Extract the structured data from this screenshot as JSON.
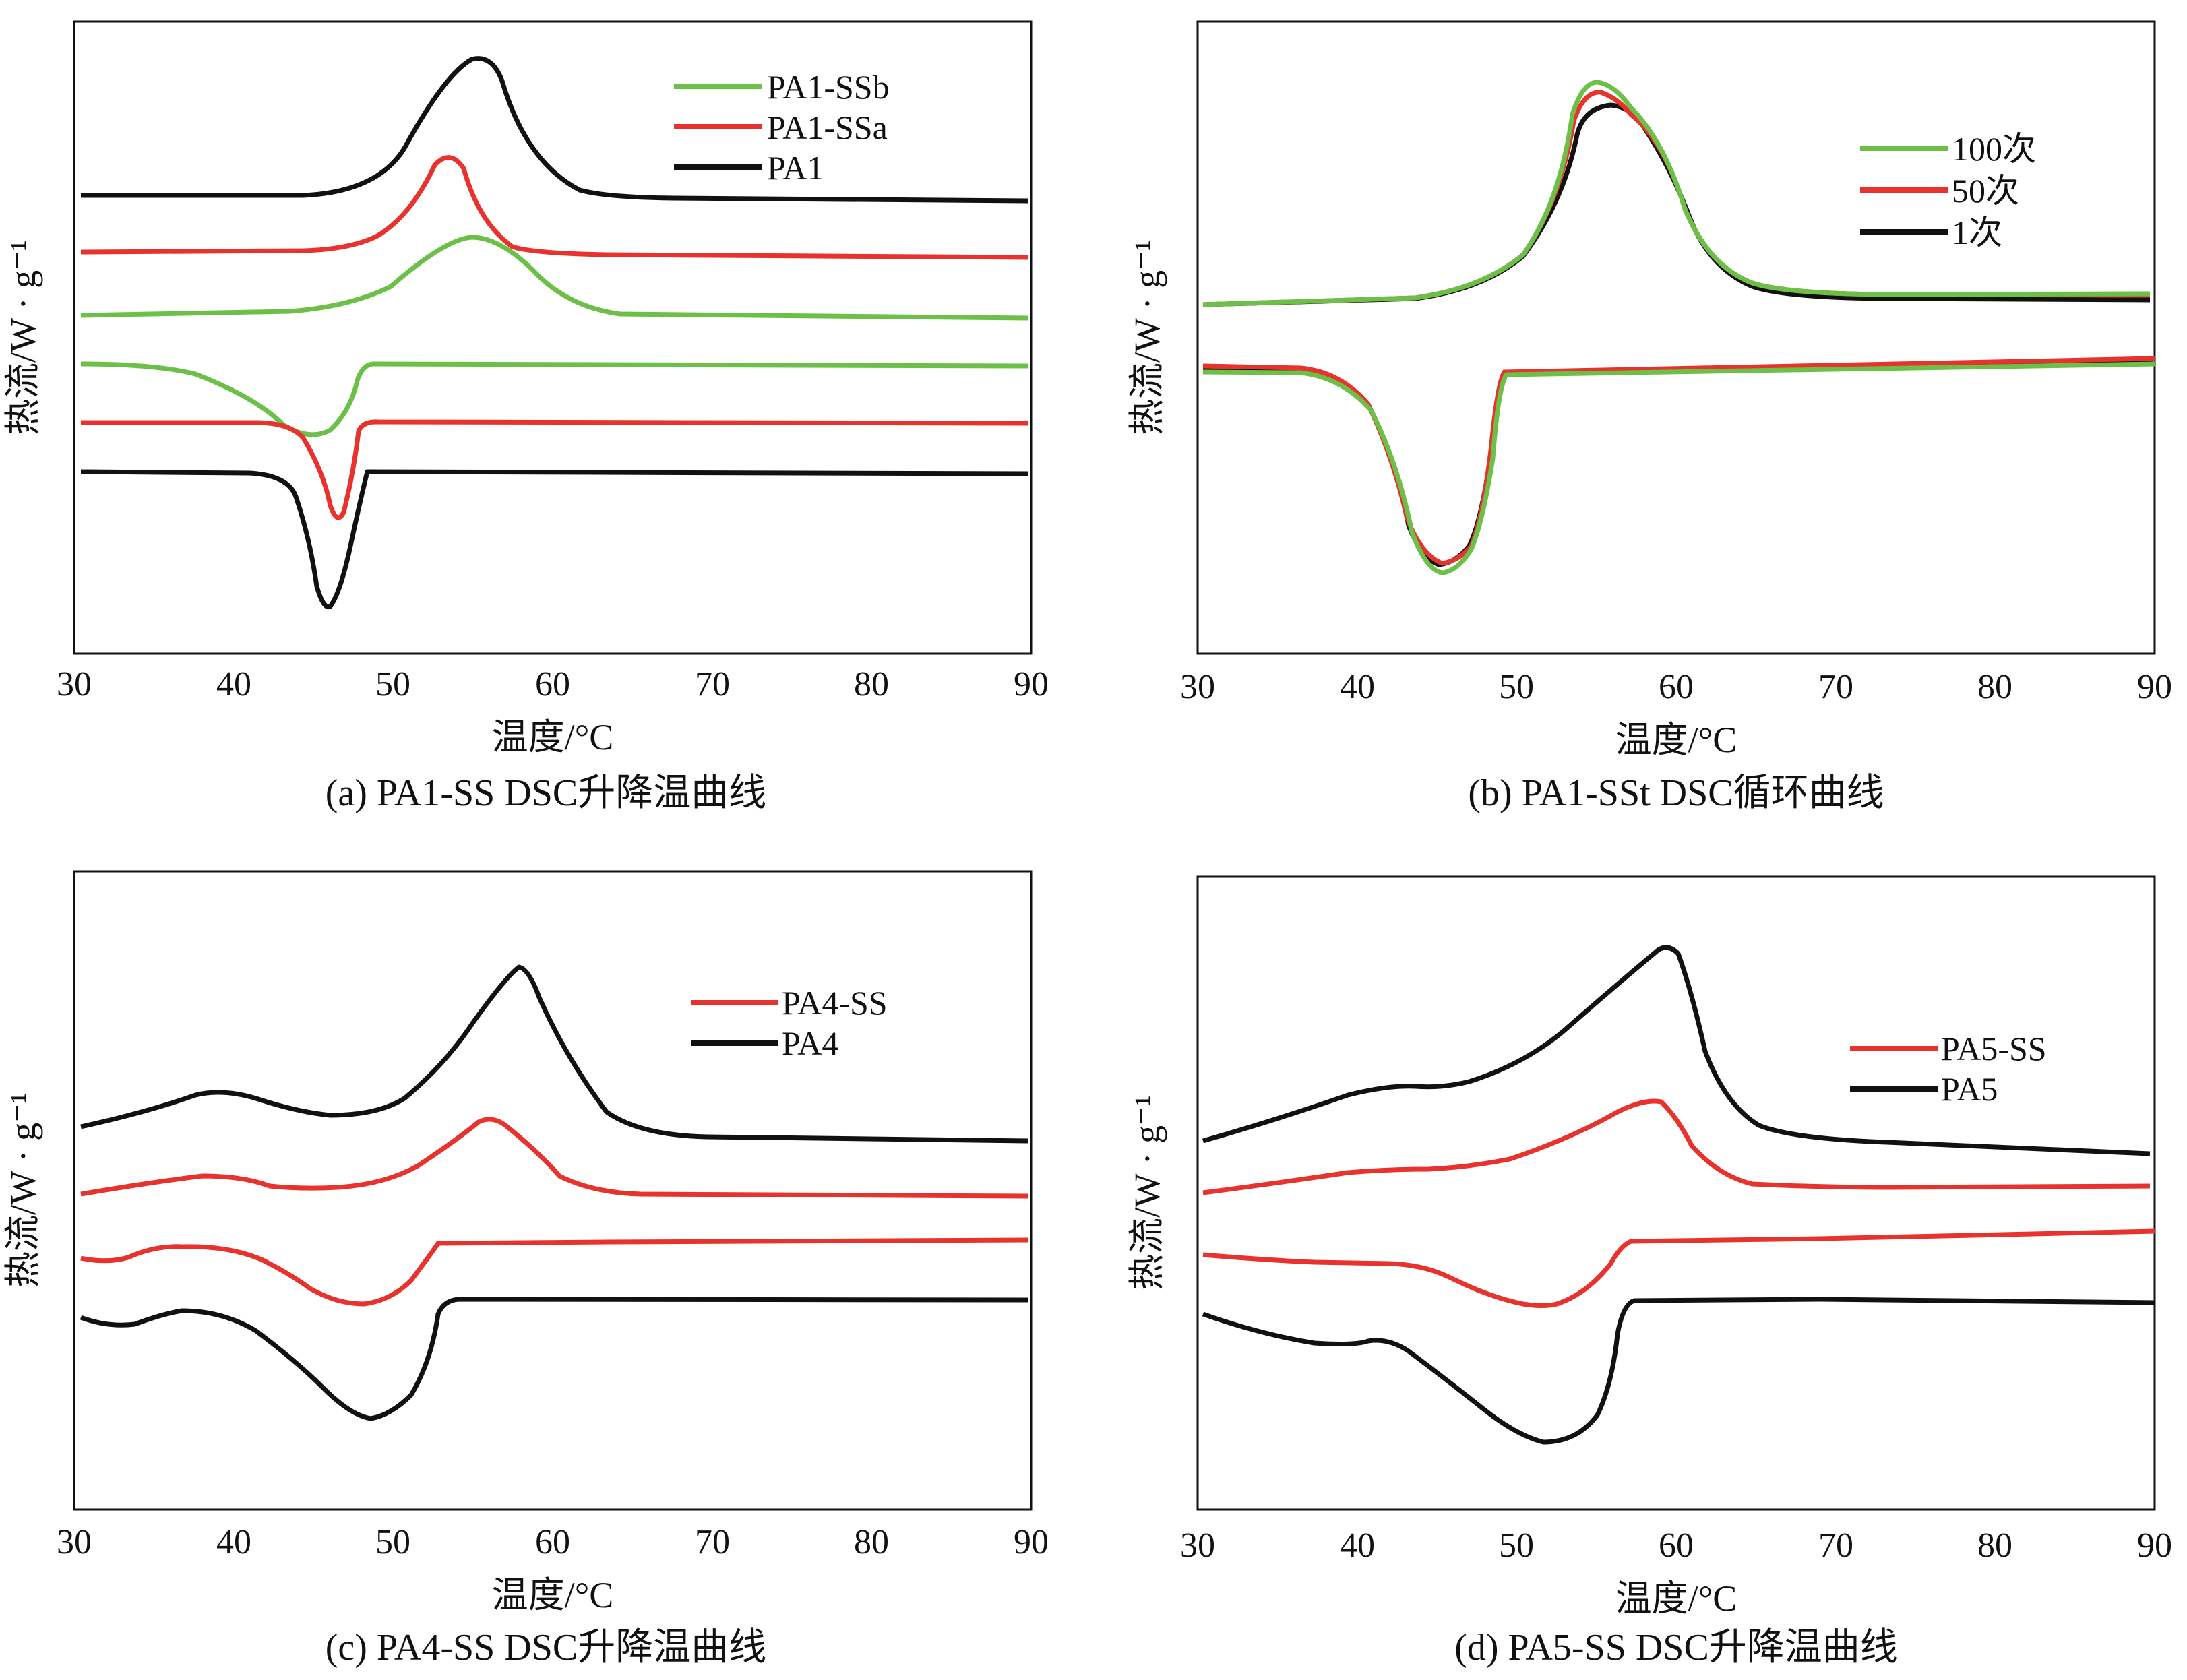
{
  "chart_data": [
    {
      "type": "line",
      "panel": "a",
      "caption": "(a) PA1-SS DSC升降温曲线",
      "xlabel": "温度/°C",
      "ylabel": "热流/W · g⁻¹",
      "xlim": [
        30,
        90
      ],
      "x_ticks": [
        "30",
        "40",
        "50",
        "60",
        "70",
        "80",
        "90"
      ],
      "y_ticks": [],
      "legend_position": "top-right",
      "legend": [
        "PA1-SSb",
        "PA1-SSa",
        "PA1"
      ],
      "series": [
        {
          "name": "PA1",
          "color": "#111111",
          "segment": "heating",
          "baseline_rank": 6,
          "events": [
            {
              "kind": "peak",
              "x": 55.5,
              "magnitude": 1.0,
              "width": 3.2
            }
          ]
        },
        {
          "name": "PA1-SSa",
          "color": "#e8322e",
          "segment": "heating",
          "baseline_rank": 5,
          "events": [
            {
              "kind": "peak",
              "x": 53.7,
              "magnitude": 0.75,
              "width": 2.6
            }
          ]
        },
        {
          "name": "PA1-SSb",
          "color": "#6cbf47",
          "segment": "heating",
          "baseline_rank": 4,
          "events": [
            {
              "kind": "peak",
              "x": 54.6,
              "magnitude": 0.55,
              "width": 4.5
            }
          ]
        },
        {
          "name": "PA1-SSb",
          "color": "#6cbf47",
          "segment": "cooling",
          "baseline_rank": 3,
          "events": [
            {
              "kind": "trough",
              "x": 44.2,
              "magnitude": 0.55,
              "onset": 48.0,
              "width": 4.0
            }
          ]
        },
        {
          "name": "PA1-SSa",
          "color": "#e8322e",
          "segment": "cooling",
          "baseline_rank": 2,
          "events": [
            {
              "kind": "trough",
              "x": 46.3,
              "magnitude": 0.75,
              "onset": 47.8,
              "width": 2.5
            }
          ]
        },
        {
          "name": "PA1",
          "color": "#111111",
          "segment": "cooling",
          "baseline_rank": 1,
          "events": [
            {
              "kind": "trough",
              "x": 45.6,
              "magnitude": 1.0,
              "onset": 48.2,
              "width": 3.0
            }
          ]
        }
      ]
    },
    {
      "type": "line",
      "panel": "b",
      "caption": "(b) PA1-SSt DSC循环曲线",
      "xlabel": "温度/°C",
      "ylabel": "热流/W · g⁻¹",
      "xlim": [
        30,
        90
      ],
      "x_ticks": [
        "30",
        "40",
        "50",
        "60",
        "70",
        "80",
        "90"
      ],
      "y_ticks": [],
      "legend_position": "top-right",
      "legend": [
        "100次",
        "50次",
        "1次"
      ],
      "series": [
        {
          "name": "1次",
          "color": "#111111",
          "segment": "heating",
          "events": [
            {
              "kind": "peak",
              "x": 55.0,
              "magnitude": 0.88,
              "width": 5.0
            }
          ]
        },
        {
          "name": "50次",
          "color": "#e8322e",
          "segment": "heating",
          "events": [
            {
              "kind": "peak",
              "x": 54.8,
              "magnitude": 0.95,
              "width": 4.8
            }
          ]
        },
        {
          "name": "100次",
          "color": "#6cbf47",
          "segment": "heating",
          "events": [
            {
              "kind": "peak",
              "x": 54.7,
              "magnitude": 1.0,
              "width": 4.8
            }
          ]
        },
        {
          "name": "1次",
          "color": "#111111",
          "segment": "cooling",
          "events": [
            {
              "kind": "trough",
              "x": 45.3,
              "magnitude": 0.95,
              "onset": 48.7,
              "width": 3.8
            }
          ]
        },
        {
          "name": "50次",
          "color": "#e8322e",
          "segment": "cooling",
          "events": [
            {
              "kind": "trough",
              "x": 45.5,
              "magnitude": 0.97,
              "onset": 48.6,
              "width": 3.8
            }
          ]
        },
        {
          "name": "100次",
          "color": "#6cbf47",
          "segment": "cooling",
          "events": [
            {
              "kind": "trough",
              "x": 45.4,
              "magnitude": 1.0,
              "onset": 48.8,
              "width": 3.8
            }
          ]
        }
      ]
    },
    {
      "type": "line",
      "panel": "c",
      "caption": "(c) PA4-SS DSC升降温曲线",
      "xlabel": "温度/°C",
      "ylabel": "热流/W · g⁻¹",
      "xlim": [
        30,
        90
      ],
      "x_ticks": [
        "30",
        "40",
        "50",
        "60",
        "70",
        "80",
        "90"
      ],
      "y_ticks": [],
      "legend_position": "top-right",
      "legend": [
        "PA4-SS",
        "PA4"
      ],
      "series": [
        {
          "name": "PA4",
          "color": "#111111",
          "segment": "heating",
          "baseline_rank": 4,
          "events": [
            {
              "kind": "peak",
              "x": 38.5,
              "magnitude": 0.2,
              "width": 4.0
            },
            {
              "kind": "peak",
              "x": 57.7,
              "magnitude": 1.0,
              "width": 4.5
            }
          ]
        },
        {
          "name": "PA4-SS",
          "color": "#e8322e",
          "segment": "heating",
          "baseline_rank": 3,
          "events": [
            {
              "kind": "peak",
              "x": 37.8,
              "magnitude": 0.15,
              "width": 3.5
            },
            {
              "kind": "peak",
              "x": 56.0,
              "magnitude": 0.55,
              "width": 4.0
            }
          ]
        },
        {
          "name": "PA4-SS",
          "color": "#e8322e",
          "segment": "cooling",
          "baseline_rank": 2,
          "events": [
            {
              "kind": "peak",
              "x": 36.5,
              "magnitude": 0.12,
              "width": 2.5
            },
            {
              "kind": "trough",
              "x": 48.2,
              "magnitude": 0.45,
              "onset": 53.0,
              "width": 5.0
            }
          ]
        },
        {
          "name": "PA4",
          "color": "#111111",
          "segment": "cooling",
          "baseline_rank": 1,
          "events": [
            {
              "kind": "peak",
              "x": 36.5,
              "magnitude": 0.12,
              "width": 2.5
            },
            {
              "kind": "trough",
              "x": 48.7,
              "magnitude": 0.85,
              "onset": 53.2,
              "width": 5.5
            }
          ]
        }
      ]
    },
    {
      "type": "line",
      "panel": "d",
      "caption": "(d) PA5-SS DSC升降温曲线",
      "xlabel": "温度/°C",
      "ylabel": "热流/W · g⁻¹",
      "xlim": [
        30,
        90
      ],
      "x_ticks": [
        "30",
        "40",
        "50",
        "60",
        "70",
        "80",
        "90"
      ],
      "y_ticks": [],
      "legend_position": "top-right",
      "legend": [
        "PA5-SS",
        "PA5"
      ],
      "series": [
        {
          "name": "PA5",
          "color": "#111111",
          "segment": "heating",
          "baseline_rank": 4,
          "events": [
            {
              "kind": "peak",
              "x": 44.0,
              "magnitude": 0.35,
              "width": 6.0
            },
            {
              "kind": "peak",
              "x": 59.4,
              "magnitude": 1.0,
              "width": 6.5
            }
          ]
        },
        {
          "name": "PA5-SS",
          "color": "#e8322e",
          "segment": "heating",
          "baseline_rank": 3,
          "events": [
            {
              "kind": "peak",
              "x": 44.0,
              "magnitude": 0.08,
              "width": 6.0
            },
            {
              "kind": "peak",
              "x": 59.0,
              "magnitude": 0.55,
              "width": 6.0
            }
          ]
        },
        {
          "name": "PA5-SS",
          "color": "#e8322e",
          "segment": "cooling",
          "baseline_rank": 2,
          "events": [
            {
              "kind": "trough",
              "x": 51.5,
              "magnitude": 0.45,
              "onset": 56.5,
              "width": 6.5
            }
          ]
        },
        {
          "name": "PA5",
          "color": "#111111",
          "segment": "cooling",
          "baseline_rank": 1,
          "events": [
            {
              "kind": "peak",
              "x": 40.5,
              "magnitude": 0.05,
              "width": 2.5
            },
            {
              "kind": "trough",
              "x": 51.2,
              "magnitude": 0.9,
              "onset": 56.5,
              "width": 6.5
            }
          ]
        }
      ]
    }
  ]
}
